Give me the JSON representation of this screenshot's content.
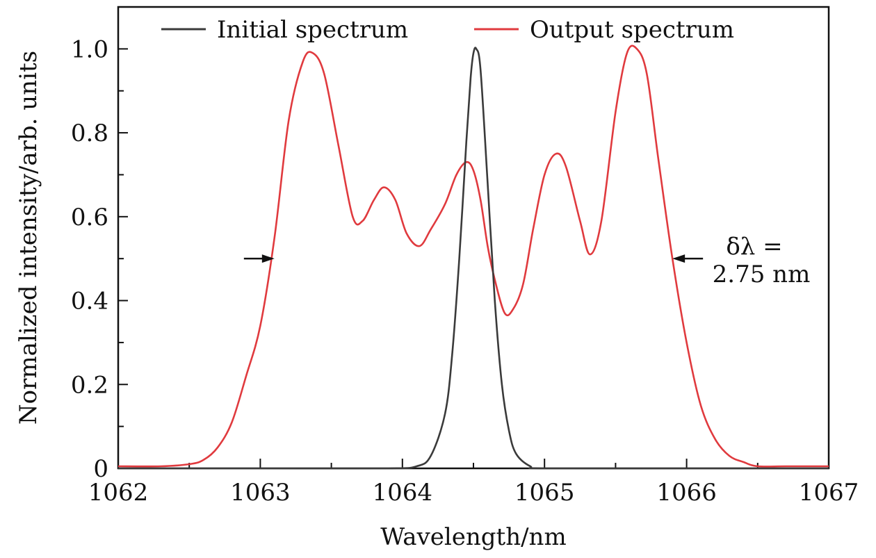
{
  "chart_data": {
    "type": "line",
    "title": "",
    "xlabel": "Wavelength/nm",
    "ylabel": "Normalized intensity/arb. units",
    "xlim": [
      1062,
      1067
    ],
    "ylim": [
      0,
      1.1
    ],
    "xticks": [
      1062,
      1063,
      1064,
      1065,
      1066,
      1067
    ],
    "xtick_labels": [
      "1062",
      "1063",
      "1064",
      "1065",
      "1066",
      "1067"
    ],
    "yticks": [
      0,
      0.2,
      0.4,
      0.6,
      0.8,
      1.0
    ],
    "ytick_labels": [
      "0",
      "0.2",
      "0.4",
      "0.6",
      "0.8",
      "1.0"
    ],
    "grid": false,
    "legend_position": "top",
    "series": [
      {
        "name": "Initial spectrum",
        "color": "#3a3a3a",
        "x": [
          1062.0,
          1063.0,
          1063.9,
          1064.1,
          1064.2,
          1064.3,
          1064.35,
          1064.4,
          1064.45,
          1064.48,
          1064.5,
          1064.52,
          1064.55,
          1064.6,
          1064.65,
          1064.7,
          1064.75,
          1064.8,
          1064.9,
          1065.0,
          1066.0,
          1067.0
        ],
        "y": [
          0.0,
          0.0,
          0.0,
          0.005,
          0.03,
          0.13,
          0.27,
          0.5,
          0.78,
          0.93,
          0.99,
          1.0,
          0.95,
          0.68,
          0.4,
          0.2,
          0.09,
          0.035,
          0.005,
          0.0,
          0.0,
          0.0
        ]
      },
      {
        "name": "Output spectrum",
        "color": "#e03a3e",
        "x": [
          1062.0,
          1062.3,
          1062.5,
          1062.6,
          1062.7,
          1062.8,
          1062.9,
          1063.0,
          1063.1,
          1063.2,
          1063.3,
          1063.37,
          1063.45,
          1063.55,
          1063.65,
          1063.72,
          1063.8,
          1063.87,
          1063.95,
          1064.03,
          1064.12,
          1064.2,
          1064.3,
          1064.38,
          1064.45,
          1064.5,
          1064.55,
          1064.6,
          1064.65,
          1064.72,
          1064.78,
          1064.85,
          1064.92,
          1065.0,
          1065.08,
          1065.15,
          1065.25,
          1065.32,
          1065.4,
          1065.5,
          1065.58,
          1065.65,
          1065.72,
          1065.8,
          1065.9,
          1066.0,
          1066.1,
          1066.2,
          1066.3,
          1066.4,
          1066.5,
          1066.7,
          1067.0
        ],
        "y": [
          0.005,
          0.005,
          0.01,
          0.02,
          0.05,
          0.11,
          0.22,
          0.34,
          0.55,
          0.83,
          0.97,
          0.99,
          0.94,
          0.77,
          0.6,
          0.59,
          0.64,
          0.67,
          0.64,
          0.56,
          0.53,
          0.57,
          0.63,
          0.7,
          0.73,
          0.71,
          0.64,
          0.53,
          0.45,
          0.37,
          0.38,
          0.44,
          0.57,
          0.7,
          0.75,
          0.72,
          0.59,
          0.51,
          0.59,
          0.85,
          0.99,
          1.0,
          0.94,
          0.74,
          0.5,
          0.3,
          0.15,
          0.07,
          0.03,
          0.015,
          0.005,
          0.005,
          0.005
        ]
      }
    ],
    "annotation": {
      "line1": "δλ =",
      "line2": "2.75 nm",
      "arrow_left_x": 1063.1,
      "arrow_right_x": 1065.9,
      "arrow_y": 0.5
    }
  }
}
